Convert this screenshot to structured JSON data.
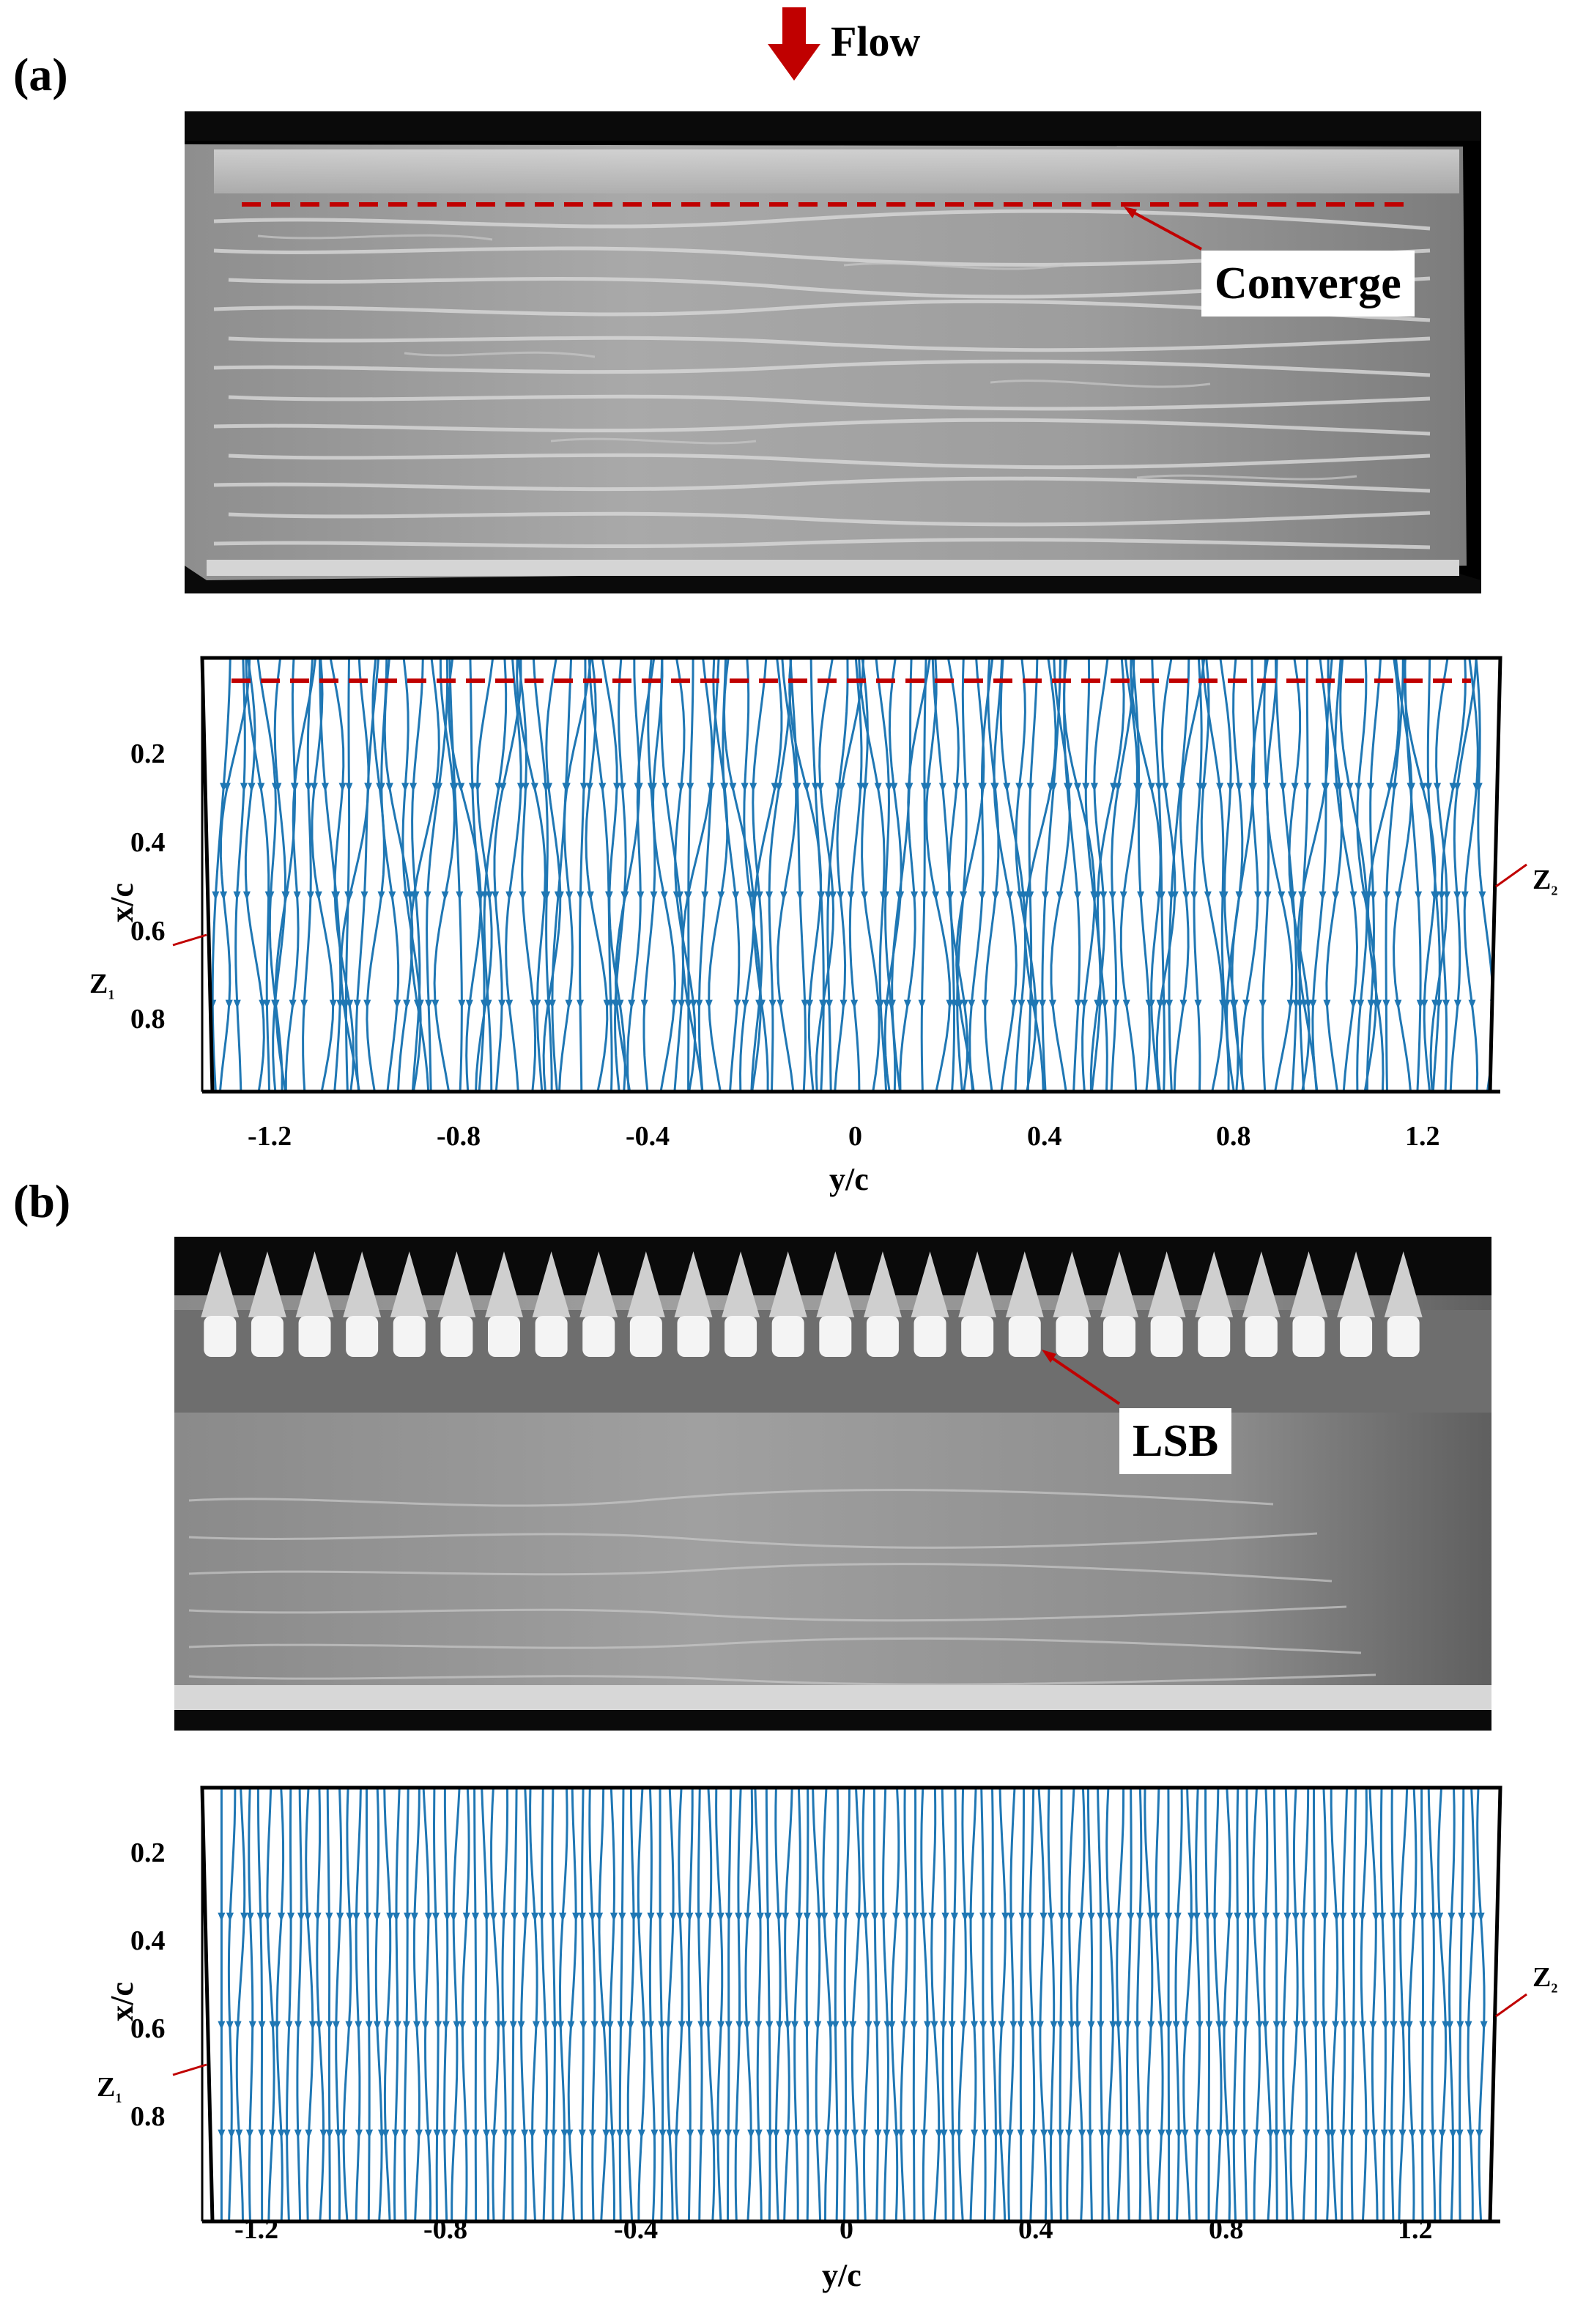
{
  "figure": {
    "flow_label": "Flow",
    "panel_a": {
      "label": "(a)",
      "photo_callout": "Converge",
      "plot": {
        "xlabel": "y/c",
        "ylabel": "x/c",
        "xticks": [
          "-1.2",
          "-0.8",
          "-0.4",
          "0",
          "0.4",
          "0.8",
          "1.2"
        ],
        "yticks": [
          "0.2",
          "0.4",
          "0.6",
          "0.8"
        ],
        "z1": "Z",
        "z1_sub": "1",
        "z2": "Z",
        "z2_sub": "2"
      }
    },
    "panel_b": {
      "label": "(b)",
      "photo_callout": "LSB",
      "plot": {
        "xlabel": "y/c",
        "ylabel": "x/c",
        "xticks": [
          "-1.2",
          "-0.8",
          "-0.4",
          "0",
          "0.4",
          "0.8",
          "1.2"
        ],
        "yticks": [
          "0.2",
          "0.4",
          "0.6",
          "0.8"
        ],
        "z1": "Z",
        "z1_sub": "1",
        "z2": "Z",
        "z2_sub": "2"
      }
    },
    "colors": {
      "streamline": "#1f77b4",
      "annotation": "#c00000",
      "flow_arrow": "#c00000"
    }
  },
  "chart_data": [
    {
      "type": "streamline",
      "panel": "(a)",
      "xlabel": "y/c",
      "ylabel": "x/c",
      "xticks": [
        -1.2,
        -0.8,
        -0.4,
        0,
        0.4,
        0.8,
        1.2
      ],
      "yticks": [
        0.2,
        0.4,
        0.6,
        0.8
      ],
      "xlim": [
        -1.35,
        1.35
      ],
      "ylim": [
        0.05,
        1.0
      ],
      "y_axis_reversed": true,
      "convergence_line_x_over_c": 0.1
    },
    {
      "type": "streamline",
      "panel": "(b)",
      "xlabel": "y/c",
      "ylabel": "x/c",
      "xticks": [
        -1.2,
        -0.8,
        -0.4,
        0,
        0.4,
        0.8,
        1.2
      ],
      "yticks": [
        0.2,
        0.4,
        0.6,
        0.8
      ],
      "xlim": [
        -1.35,
        1.35
      ],
      "ylim": [
        0.05,
        1.0
      ],
      "y_axis_reversed": true
    }
  ]
}
